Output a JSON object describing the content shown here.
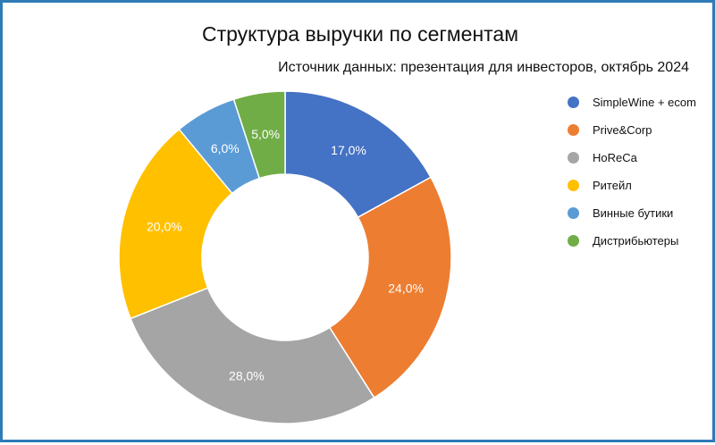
{
  "chart_data": {
    "type": "pie",
    "variant": "donut",
    "title": "Структура выручки по сегментам",
    "subtitle": "Источник данных: презентация для инвесторов, октябрь 2024",
    "categories": [
      "SimpleWine + ecom",
      "Prive&Corp",
      "HoReCa",
      "Ритейл",
      "Винные бутики",
      "Дистрибьютеры"
    ],
    "values": [
      17.0,
      24.0,
      28.0,
      20.0,
      6.0,
      5.0
    ],
    "labels": [
      "17,0%",
      "24,0%",
      "28,0%",
      "20,0%",
      "6,0%",
      "5,0%"
    ],
    "colors": [
      "#4472c4",
      "#ed7d31",
      "#a5a5a5",
      "#ffc000",
      "#5b9bd5",
      "#70ad47"
    ],
    "legend_position": "right"
  }
}
